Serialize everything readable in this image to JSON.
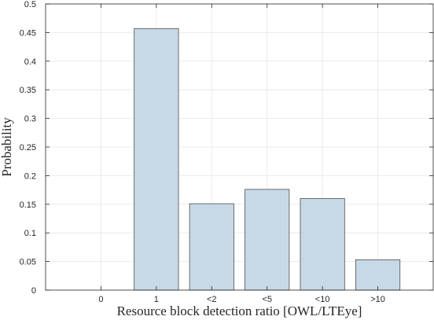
{
  "chart_data": {
    "type": "bar",
    "title": "",
    "xlabel": "Resource block detection ratio [OWL/LTEye]",
    "ylabel": "Probability",
    "categories": [
      "0",
      "1",
      "<2",
      "<5",
      "<10",
      ">10"
    ],
    "values": [
      0.0,
      0.457,
      0.151,
      0.176,
      0.16,
      0.053
    ],
    "ylim": [
      0,
      0.5
    ],
    "yticks": [
      0,
      0.05,
      0.1,
      0.15,
      0.2,
      0.25,
      0.3,
      0.35,
      0.4,
      0.45,
      0.5
    ],
    "ytick_labels": [
      "0",
      "0.05",
      "0.1",
      "0.15",
      "0.2",
      "0.25",
      "0.3",
      "0.35",
      "0.4",
      "0.45",
      "0.5"
    ],
    "grid": true,
    "legend": "none",
    "bar_color": "#c7d9e6",
    "bar_edge_color": "#4d4d4d"
  }
}
